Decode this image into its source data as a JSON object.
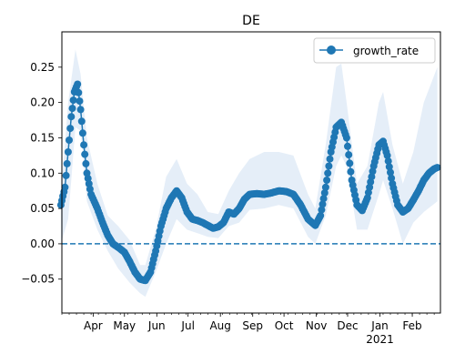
{
  "chart_data": {
    "type": "line",
    "title": "DE",
    "xlabel": "",
    "ylabel": "",
    "ylim": [
      -0.098,
      0.3
    ],
    "xlim": [
      "2020-03-02",
      "2021-02-28"
    ],
    "x_ticks": [
      {
        "date": "2020-04-01",
        "label": "Apr"
      },
      {
        "date": "2020-05-01",
        "label": "May"
      },
      {
        "date": "2020-06-01",
        "label": "Jun"
      },
      {
        "date": "2020-07-01",
        "label": "Jul"
      },
      {
        "date": "2020-08-01",
        "label": "Aug"
      },
      {
        "date": "2020-09-01",
        "label": "Sep"
      },
      {
        "date": "2020-10-01",
        "label": "Oct"
      },
      {
        "date": "2020-11-01",
        "label": "Nov"
      },
      {
        "date": "2020-12-01",
        "label": "Dec"
      },
      {
        "date": "2021-01-01",
        "label": "Jan"
      },
      {
        "date": "2021-02-01",
        "label": "Feb"
      }
    ],
    "year_label": {
      "date": "2021-01-01",
      "label": "2021"
    },
    "y_ticks": [
      -0.05,
      0.0,
      0.05,
      0.1,
      0.15,
      0.2,
      0.25
    ],
    "y_tick_labels": [
      "−0.05",
      "0.00",
      "0.05",
      "0.10",
      "0.15",
      "0.20",
      "0.25"
    ],
    "reference_line": {
      "y": 0.0,
      "style": "dashed"
    },
    "legend": {
      "position": "top-right",
      "entries": [
        "growth_rate"
      ]
    },
    "colors": {
      "series": "#1f77b4",
      "band": "#dce8f5"
    },
    "series": [
      {
        "name": "growth_rate",
        "points": [
          [
            "2020-03-01",
            0.055
          ],
          [
            "2020-03-05",
            0.08
          ],
          [
            "2020-03-08",
            0.13
          ],
          [
            "2020-03-11",
            0.18
          ],
          [
            "2020-03-14",
            0.215
          ],
          [
            "2020-03-17",
            0.226
          ],
          [
            "2020-03-20",
            0.19
          ],
          [
            "2020-03-23",
            0.14
          ],
          [
            "2020-03-26",
            0.1
          ],
          [
            "2020-03-30",
            0.07
          ],
          [
            "2020-04-05",
            0.05
          ],
          [
            "2020-04-10",
            0.03
          ],
          [
            "2020-04-15",
            0.012
          ],
          [
            "2020-04-20",
            0.0
          ],
          [
            "2020-04-25",
            -0.005
          ],
          [
            "2020-05-01",
            -0.012
          ],
          [
            "2020-05-06",
            -0.025
          ],
          [
            "2020-05-11",
            -0.04
          ],
          [
            "2020-05-16",
            -0.05
          ],
          [
            "2020-05-21",
            -0.052
          ],
          [
            "2020-05-26",
            -0.04
          ],
          [
            "2020-05-31",
            -0.01
          ],
          [
            "2020-06-05",
            0.025
          ],
          [
            "2020-06-10",
            0.05
          ],
          [
            "2020-06-15",
            0.065
          ],
          [
            "2020-06-20",
            0.075
          ],
          [
            "2020-06-25",
            0.065
          ],
          [
            "2020-06-30",
            0.045
          ],
          [
            "2020-07-05",
            0.035
          ],
          [
            "2020-07-10",
            0.033
          ],
          [
            "2020-07-15",
            0.03
          ],
          [
            "2020-07-20",
            0.026
          ],
          [
            "2020-07-25",
            0.022
          ],
          [
            "2020-07-30",
            0.024
          ],
          [
            "2020-08-04",
            0.03
          ],
          [
            "2020-08-09",
            0.045
          ],
          [
            "2020-08-14",
            0.042
          ],
          [
            "2020-08-19",
            0.05
          ],
          [
            "2020-08-24",
            0.063
          ],
          [
            "2020-08-29",
            0.07
          ],
          [
            "2020-09-05",
            0.071
          ],
          [
            "2020-09-12",
            0.07
          ],
          [
            "2020-09-19",
            0.072
          ],
          [
            "2020-09-26",
            0.075
          ],
          [
            "2020-10-03",
            0.074
          ],
          [
            "2020-10-10",
            0.07
          ],
          [
            "2020-10-17",
            0.055
          ],
          [
            "2020-10-24",
            0.035
          ],
          [
            "2020-10-31",
            0.026
          ],
          [
            "2020-11-05",
            0.04
          ],
          [
            "2020-11-10",
            0.08
          ],
          [
            "2020-11-15",
            0.13
          ],
          [
            "2020-11-20",
            0.165
          ],
          [
            "2020-11-25",
            0.172
          ],
          [
            "2020-11-30",
            0.15
          ],
          [
            "2020-12-05",
            0.09
          ],
          [
            "2020-12-10",
            0.055
          ],
          [
            "2020-12-15",
            0.047
          ],
          [
            "2020-12-20",
            0.065
          ],
          [
            "2020-12-26",
            0.11
          ],
          [
            "2020-12-31",
            0.14
          ],
          [
            "2021-01-04",
            0.145
          ],
          [
            "2021-01-08",
            0.125
          ],
          [
            "2021-01-13",
            0.085
          ],
          [
            "2021-01-18",
            0.055
          ],
          [
            "2021-01-23",
            0.045
          ],
          [
            "2021-01-28",
            0.05
          ],
          [
            "2021-02-02",
            0.062
          ],
          [
            "2021-02-07",
            0.075
          ],
          [
            "2021-02-12",
            0.09
          ],
          [
            "2021-02-17",
            0.1
          ],
          [
            "2021-02-22",
            0.106
          ],
          [
            "2021-02-25",
            0.108
          ]
        ],
        "band": [
          [
            "2020-03-01",
            0.0,
            0.07
          ],
          [
            "2020-03-08",
            0.035,
            0.2
          ],
          [
            "2020-03-15",
            0.165,
            0.275
          ],
          [
            "2020-03-20",
            0.16,
            0.24
          ],
          [
            "2020-03-26",
            0.06,
            0.15
          ],
          [
            "2020-04-05",
            0.02,
            0.085
          ],
          [
            "2020-04-15",
            -0.01,
            0.04
          ],
          [
            "2020-04-25",
            -0.035,
            0.025
          ],
          [
            "2020-05-06",
            -0.055,
            0.005
          ],
          [
            "2020-05-16",
            -0.07,
            -0.03
          ],
          [
            "2020-05-21",
            -0.075,
            -0.03
          ],
          [
            "2020-05-31",
            -0.04,
            0.02
          ],
          [
            "2020-06-10",
            0.0,
            0.095
          ],
          [
            "2020-06-20",
            0.035,
            0.12
          ],
          [
            "2020-06-30",
            0.02,
            0.085
          ],
          [
            "2020-07-10",
            0.015,
            0.07
          ],
          [
            "2020-07-20",
            0.01,
            0.045
          ],
          [
            "2020-07-30",
            0.008,
            0.042
          ],
          [
            "2020-08-09",
            0.025,
            0.075
          ],
          [
            "2020-08-19",
            0.03,
            0.1
          ],
          [
            "2020-08-29",
            0.048,
            0.12
          ],
          [
            "2020-09-12",
            0.05,
            0.13
          ],
          [
            "2020-09-26",
            0.055,
            0.13
          ],
          [
            "2020-10-10",
            0.05,
            0.125
          ],
          [
            "2020-10-24",
            0.01,
            0.07
          ],
          [
            "2020-10-31",
            0.0,
            0.05
          ],
          [
            "2020-11-10",
            0.04,
            0.14
          ],
          [
            "2020-11-20",
            0.11,
            0.25
          ],
          [
            "2020-11-25",
            0.125,
            0.255
          ],
          [
            "2020-11-30",
            0.11,
            0.2
          ],
          [
            "2020-12-10",
            0.02,
            0.085
          ],
          [
            "2020-12-20",
            0.02,
            0.11
          ],
          [
            "2020-12-31",
            0.07,
            0.2
          ],
          [
            "2021-01-04",
            0.09,
            0.215
          ],
          [
            "2021-01-13",
            0.05,
            0.14
          ],
          [
            "2021-01-23",
            0.0,
            0.085
          ],
          [
            "2021-02-02",
            0.03,
            0.13
          ],
          [
            "2021-02-12",
            0.045,
            0.2
          ],
          [
            "2021-02-25",
            0.06,
            0.25
          ]
        ]
      }
    ]
  }
}
